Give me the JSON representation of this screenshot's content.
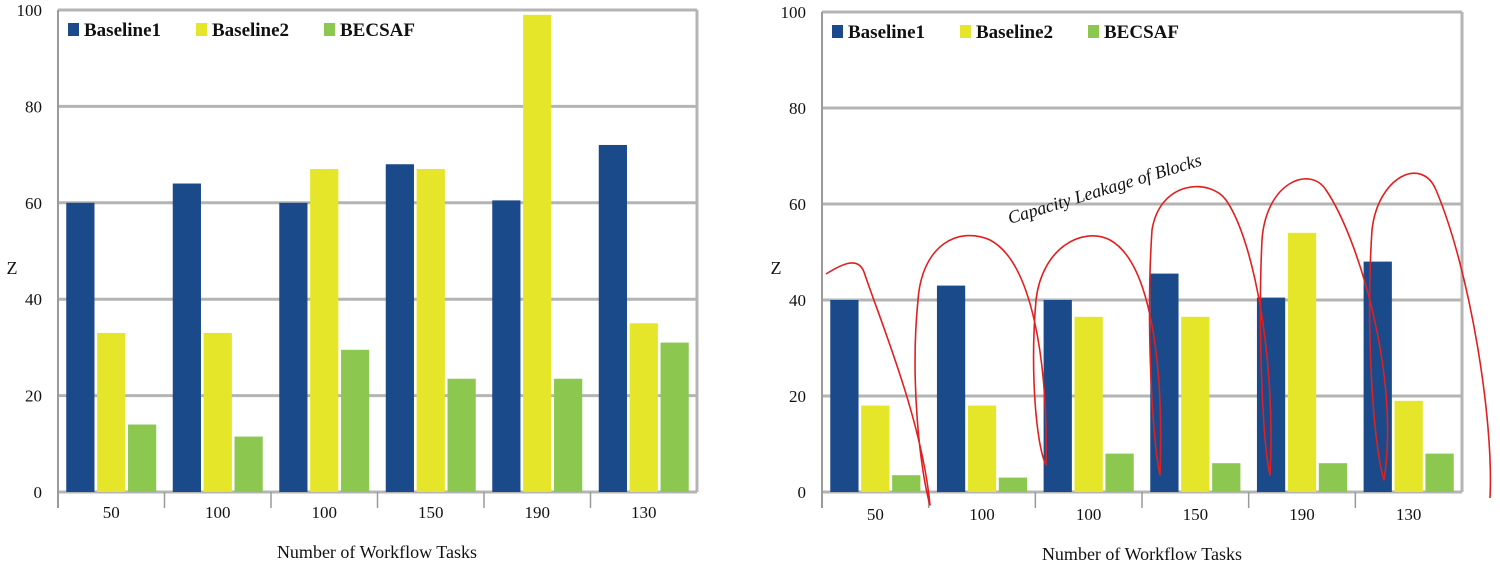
{
  "colors": {
    "baseline1": "#1a4a8a",
    "baseline2": "#e5e52a",
    "becsaf": "#8cc850",
    "grid": "#b4b4b4",
    "annotation_stroke": "#e02020"
  },
  "chart_data": [
    {
      "type": "bar",
      "title": "",
      "xlabel": "Number of Workflow Tasks",
      "ylabel": "Z",
      "ylim": [
        0,
        100
      ],
      "yticks": [
        "0",
        "20",
        "40",
        "60",
        "80",
        "100"
      ],
      "categories": [
        "50",
        "100",
        "100",
        "150",
        "190",
        "130"
      ],
      "legend_position": "top-left",
      "grid": true,
      "series": [
        {
          "name": "Baseline1",
          "values": [
            60,
            64,
            60,
            68,
            60.5,
            72
          ]
        },
        {
          "name": "Baseline2",
          "values": [
            33,
            33,
            67,
            67,
            99,
            35
          ]
        },
        {
          "name": "BECSAF",
          "values": [
            14,
            11.5,
            29.5,
            23.5,
            23.5,
            31
          ]
        }
      ]
    },
    {
      "type": "bar",
      "title": "",
      "xlabel": "Number of Workflow Tasks",
      "ylabel": "Z",
      "ylim": [
        0,
        100
      ],
      "yticks": [
        "0",
        "20",
        "40",
        "60",
        "80",
        "100"
      ],
      "categories": [
        "50",
        "100",
        "100",
        "150",
        "190",
        "130"
      ],
      "legend_position": "top-left",
      "grid": true,
      "annotation": "Capacity Leakage of Blocks",
      "series": [
        {
          "name": "Baseline1",
          "values": [
            40,
            43,
            40,
            45.5,
            40.5,
            48
          ]
        },
        {
          "name": "Baseline2",
          "values": [
            18,
            18,
            36.5,
            36.5,
            54,
            19
          ]
        },
        {
          "name": "BECSAF",
          "values": [
            3.5,
            3,
            8,
            6,
            6,
            8
          ]
        }
      ]
    }
  ]
}
